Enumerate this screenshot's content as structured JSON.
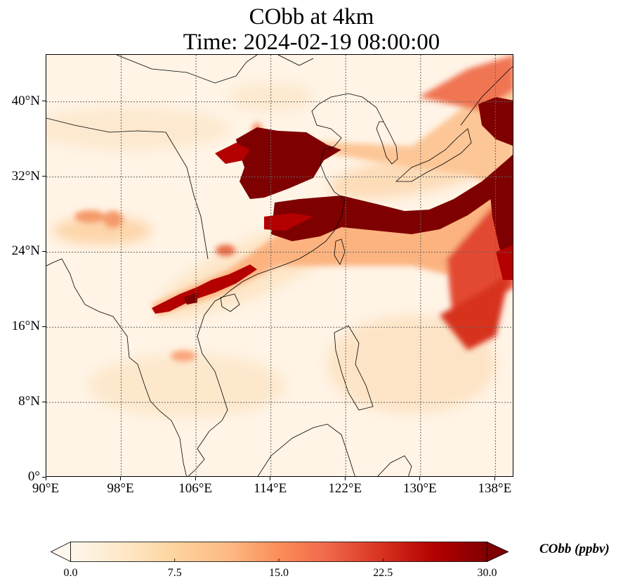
{
  "title_line1": "CObb at 4km",
  "title_line2": "Time: 2024-02-19 08:00:00",
  "map": {
    "lon_range": [
      90,
      140
    ],
    "lat_range": [
      0,
      45
    ],
    "lon_ticks": [
      {
        "value": 90,
        "label": "90°E"
      },
      {
        "value": 98,
        "label": "98°E"
      },
      {
        "value": 106,
        "label": "106°E"
      },
      {
        "value": 114,
        "label": "114°E"
      },
      {
        "value": 122,
        "label": "122°E"
      },
      {
        "value": 130,
        "label": "130°E"
      },
      {
        "value": 138,
        "label": "138°E"
      }
    ],
    "lat_ticks": [
      {
        "value": 0,
        "label": "0°"
      },
      {
        "value": 8,
        "label": "8°N"
      },
      {
        "value": 16,
        "label": "16°N"
      },
      {
        "value": 24,
        "label": "24°N"
      },
      {
        "value": 32,
        "label": "32°N"
      },
      {
        "value": 40,
        "label": "40°N"
      }
    ],
    "gridlines": true
  },
  "colorbar": {
    "label": "CObb (ppbv)",
    "min": 0.0,
    "max": 30.0,
    "extend": "both",
    "colormap": "OrRd",
    "colors": [
      "#fff7ec",
      "#fee8c8",
      "#fdd49e",
      "#fdbb84",
      "#fc8d59",
      "#ef6548",
      "#d7301f",
      "#b30000",
      "#7f0000"
    ],
    "ticks": [
      "0.0",
      "7.5",
      "15.0",
      "22.5",
      "30.0"
    ]
  }
}
